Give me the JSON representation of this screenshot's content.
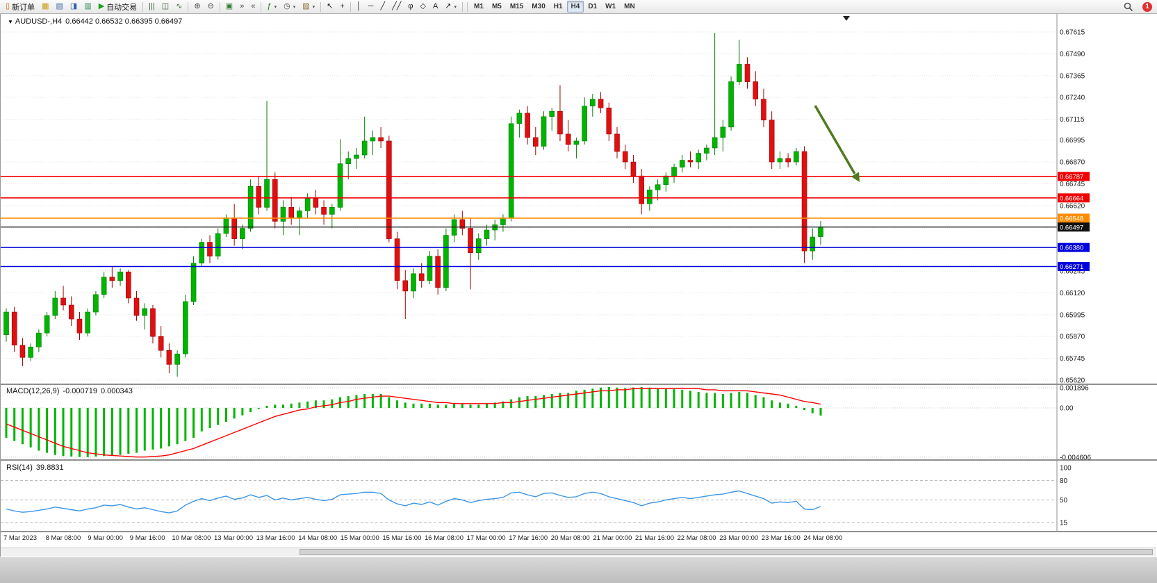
{
  "toolbar": {
    "items": [
      {
        "name": "new-order-button",
        "glyph": "▯",
        "glyph_color": "#d06010",
        "label": "新订单"
      },
      {
        "name": "market-watch-button",
        "glyph": "▦",
        "glyph_color": "#c8960a"
      },
      {
        "name": "data-window-button",
        "glyph": "▤",
        "glyph_color": "#3a62a8"
      },
      {
        "name": "navigator-button",
        "glyph": "◨",
        "glyph_color": "#3a62a8"
      },
      {
        "name": "terminal-button",
        "glyph": "▥",
        "glyph_color": "#2e8b57"
      },
      {
        "name": "autotrading-button",
        "glyph": "▶",
        "glyph_color": "#18a018",
        "label": "自动交易"
      },
      {
        "sep": true
      },
      {
        "name": "bar-chart-button",
        "glyph": "|||",
        "glyph_color": "#355e35"
      },
      {
        "name": "candlestick-chart-button",
        "glyph": "◫",
        "glyph_color": "#355e35"
      },
      {
        "name": "line-chart-button",
        "glyph": "∿",
        "glyph_color": "#355e35"
      },
      {
        "sep": true
      },
      {
        "name": "zoom-in-button",
        "glyph": "⊕",
        "glyph_color": "#444444"
      },
      {
        "name": "zoom-out-button",
        "glyph": "⊖",
        "glyph_color": "#444444"
      },
      {
        "sep": true
      },
      {
        "name": "tile-windows-button",
        "glyph": "▣",
        "glyph_color": "#3a7a3a"
      },
      {
        "name": "chart-shift-button",
        "glyph": "»",
        "glyph_color": "#444444"
      },
      {
        "name": "auto-scroll-button",
        "glyph": "«",
        "glyph_color": "#444444"
      },
      {
        "sep": true
      },
      {
        "name": "indicators-button",
        "glyph": "ƒ",
        "glyph_color": "#1f7a1f",
        "caret": true
      },
      {
        "name": "periods-button",
        "glyph": "◷",
        "glyph_color": "#444444",
        "caret": true
      },
      {
        "name": "templates-button",
        "glyph": "▧",
        "glyph_color": "#8a6a2a",
        "caret": true
      },
      {
        "sep": true
      },
      {
        "name": "cursor-button",
        "glyph": "↖",
        "glyph_color": "#222222"
      },
      {
        "name": "crosshair-button",
        "glyph": "+",
        "glyph_color": "#222222"
      },
      {
        "sep": true
      },
      {
        "name": "vertical-line-button",
        "glyph": "│",
        "glyph_color": "#222222"
      },
      {
        "name": "horizontal-line-button",
        "glyph": "─",
        "glyph_color": "#222222"
      },
      {
        "name": "trendline-button",
        "glyph": "╱",
        "glyph_color": "#222222"
      },
      {
        "name": "channel-button",
        "glyph": "╱╱",
        "glyph_color": "#222222"
      },
      {
        "name": "fibonacci-button",
        "glyph": "φ",
        "glyph_color": "#222222"
      },
      {
        "name": "shapes-button",
        "glyph": "◇",
        "glyph_color": "#222222"
      },
      {
        "name": "text-button",
        "glyph": "A",
        "glyph_color": "#222222"
      },
      {
        "name": "arrow-tools-button",
        "glyph": "↗",
        "glyph_color": "#222222",
        "caret": true
      },
      {
        "sep": true
      }
    ],
    "timeframes": [
      {
        "label": "M1"
      },
      {
        "label": "M5"
      },
      {
        "label": "M15"
      },
      {
        "label": "M30"
      },
      {
        "label": "H1"
      },
      {
        "label": "H4",
        "active": true
      },
      {
        "label": "D1"
      },
      {
        "label": "W1"
      },
      {
        "label": "MN"
      }
    ],
    "notification_count": "1"
  },
  "chart": {
    "title_symbol": "AUDUSD-,H4",
    "title_ohlc": "0.66442 0.66532 0.66395 0.66497"
  },
  "chart_data": {
    "type": "candlestick",
    "symbol": "AUDUSD",
    "period": "H4",
    "y_axis": {
      "min": 0.6562,
      "max": 0.67615,
      "step": 0.00125,
      "labels": [
        0.67615,
        0.6749,
        0.67365,
        0.6724,
        0.67115,
        0.66995,
        0.6687,
        0.66745,
        0.6662,
        0.66245,
        0.6612,
        0.65995,
        0.6587,
        0.65745,
        0.6562
      ],
      "extra_grid": [
        0.66495,
        0.6637
      ]
    },
    "x_axis_labels": [
      "7 Mar 2023",
      "8 Mar 08:00",
      "9 Mar 00:00",
      "9 Mar 16:00",
      "10 Mar 08:00",
      "13 Mar 00:00",
      "13 Mar 16:00",
      "14 Mar 08:00",
      "15 Mar 00:00",
      "15 Mar 16:00",
      "16 Mar 08:00",
      "17 Mar 00:00",
      "17 Mar 16:00",
      "20 Mar 08:00",
      "21 Mar 00:00",
      "21 Mar 16:00",
      "22 Mar 08:00",
      "23 Mar 00:00",
      "23 Mar 16:00",
      "24 Mar 08:00"
    ],
    "colors": {
      "up": "#00b400",
      "up_stroke": "#007a00",
      "down": "#e01010",
      "down_stroke": "#9c0000"
    },
    "h_lines": [
      {
        "price": 0.66787,
        "color": "#f00000"
      },
      {
        "price": 0.66664,
        "color": "#f00000"
      },
      {
        "price": 0.66548,
        "color": "#ff8c00"
      },
      {
        "price": 0.6638,
        "color": "#0000dc"
      },
      {
        "price": 0.66271,
        "color": "#0000dc"
      }
    ],
    "bid_line": {
      "price": 0.66497,
      "color": "#1a1a1a"
    },
    "candles": [
      [
        0.6588,
        0.6603,
        0.6584,
        0.6601
      ],
      [
        0.6601,
        0.6604,
        0.6578,
        0.6582
      ],
      [
        0.6582,
        0.6586,
        0.657,
        0.6575
      ],
      [
        0.6575,
        0.6583,
        0.6573,
        0.6581
      ],
      [
        0.6581,
        0.6591,
        0.6578,
        0.6589
      ],
      [
        0.6589,
        0.6601,
        0.6587,
        0.6599
      ],
      [
        0.6599,
        0.6613,
        0.6597,
        0.6609
      ],
      [
        0.6609,
        0.6616,
        0.6602,
        0.6605
      ],
      [
        0.6605,
        0.661,
        0.6593,
        0.6597
      ],
      [
        0.6597,
        0.6601,
        0.6585,
        0.6589
      ],
      [
        0.6589,
        0.6603,
        0.6587,
        0.6601
      ],
      [
        0.6601,
        0.6613,
        0.6599,
        0.6611
      ],
      [
        0.6611,
        0.6624,
        0.6609,
        0.6621
      ],
      [
        0.6621,
        0.6627,
        0.6615,
        0.6619
      ],
      [
        0.6619,
        0.6626,
        0.6616,
        0.6624
      ],
      [
        0.6624,
        0.6625,
        0.6606,
        0.6609
      ],
      [
        0.6609,
        0.6613,
        0.6596,
        0.6599
      ],
      [
        0.6599,
        0.6606,
        0.6591,
        0.6603
      ],
      [
        0.6603,
        0.6605,
        0.6583,
        0.6587
      ],
      [
        0.6587,
        0.6593,
        0.6575,
        0.6579
      ],
      [
        0.6579,
        0.6583,
        0.6566,
        0.6571
      ],
      [
        0.6571,
        0.6579,
        0.6564,
        0.6577
      ],
      [
        0.6577,
        0.6611,
        0.6575,
        0.6607
      ],
      [
        0.6607,
        0.6633,
        0.6605,
        0.6629
      ],
      [
        0.6629,
        0.6643,
        0.6627,
        0.6641
      ],
      [
        0.6641,
        0.6645,
        0.6629,
        0.6633
      ],
      [
        0.6633,
        0.6649,
        0.6631,
        0.6646
      ],
      [
        0.6646,
        0.6657,
        0.6644,
        0.6655
      ],
      [
        0.6655,
        0.6663,
        0.6639,
        0.6643
      ],
      [
        0.6643,
        0.6651,
        0.6637,
        0.6649
      ],
      [
        0.6649,
        0.6677,
        0.6647,
        0.6673
      ],
      [
        0.6673,
        0.6679,
        0.6657,
        0.6661
      ],
      [
        0.6661,
        0.6722,
        0.6659,
        0.6677
      ],
      [
        0.6677,
        0.6681,
        0.6649,
        0.6653
      ],
      [
        0.6653,
        0.6665,
        0.6645,
        0.6661
      ],
      [
        0.6661,
        0.6667,
        0.6651,
        0.6655
      ],
      [
        0.6655,
        0.6661,
        0.6645,
        0.6659
      ],
      [
        0.6659,
        0.6669,
        0.6655,
        0.6666
      ],
      [
        0.6666,
        0.6671,
        0.6657,
        0.6661
      ],
      [
        0.6661,
        0.6665,
        0.6651,
        0.6657
      ],
      [
        0.6657,
        0.6663,
        0.6649,
        0.6661
      ],
      [
        0.6661,
        0.67,
        0.6659,
        0.6686
      ],
      [
        0.6686,
        0.6693,
        0.6677,
        0.6689
      ],
      [
        0.6689,
        0.6695,
        0.6683,
        0.6691
      ],
      [
        0.6691,
        0.6713,
        0.6689,
        0.6699
      ],
      [
        0.6699,
        0.6705,
        0.6691,
        0.6701
      ],
      [
        0.6701,
        0.6707,
        0.6695,
        0.6699
      ],
      [
        0.6699,
        0.6702,
        0.6641,
        0.6643
      ],
      [
        0.6643,
        0.6647,
        0.6614,
        0.6619
      ],
      [
        0.6619,
        0.6625,
        0.6597,
        0.6613
      ],
      [
        0.6613,
        0.6626,
        0.6609,
        0.6623
      ],
      [
        0.6623,
        0.6629,
        0.6615,
        0.6619
      ],
      [
        0.6619,
        0.6636,
        0.6617,
        0.6633
      ],
      [
        0.6633,
        0.6637,
        0.6611,
        0.6615
      ],
      [
        0.6615,
        0.6649,
        0.6613,
        0.6645
      ],
      [
        0.6645,
        0.6657,
        0.6641,
        0.6654
      ],
      [
        0.6654,
        0.6659,
        0.6645,
        0.6649
      ],
      [
        0.6649,
        0.6655,
        0.6614,
        0.6635
      ],
      [
        0.6635,
        0.6646,
        0.6631,
        0.6643
      ],
      [
        0.6643,
        0.6651,
        0.6639,
        0.6648
      ],
      [
        0.6648,
        0.6654,
        0.6642,
        0.6651
      ],
      [
        0.6651,
        0.6657,
        0.6647,
        0.6655
      ],
      [
        0.6655,
        0.6713,
        0.6653,
        0.6709
      ],
      [
        0.6709,
        0.6717,
        0.6701,
        0.6715
      ],
      [
        0.6715,
        0.6719,
        0.6697,
        0.6701
      ],
      [
        0.6701,
        0.6707,
        0.6691,
        0.6696
      ],
      [
        0.6696,
        0.6716,
        0.6694,
        0.6713
      ],
      [
        0.6713,
        0.6718,
        0.6705,
        0.6716
      ],
      [
        0.6716,
        0.6731,
        0.6699,
        0.6703
      ],
      [
        0.6703,
        0.6711,
        0.6693,
        0.6697
      ],
      [
        0.6697,
        0.6701,
        0.6689,
        0.6699
      ],
      [
        0.6699,
        0.6724,
        0.6697,
        0.6719
      ],
      [
        0.6719,
        0.6726,
        0.6713,
        0.6723
      ],
      [
        0.6723,
        0.6727,
        0.6715,
        0.6718
      ],
      [
        0.6718,
        0.6721,
        0.6699,
        0.6703
      ],
      [
        0.6703,
        0.6707,
        0.6689,
        0.6693
      ],
      [
        0.6693,
        0.6697,
        0.6683,
        0.6687
      ],
      [
        0.6687,
        0.6691,
        0.6675,
        0.6679
      ],
      [
        0.6679,
        0.6683,
        0.6657,
        0.6663
      ],
      [
        0.6663,
        0.6673,
        0.6659,
        0.6671
      ],
      [
        0.6671,
        0.6677,
        0.6665,
        0.6674
      ],
      [
        0.6674,
        0.6681,
        0.667,
        0.6679
      ],
      [
        0.6679,
        0.6686,
        0.6675,
        0.6684
      ],
      [
        0.6684,
        0.6691,
        0.6681,
        0.6688
      ],
      [
        0.6688,
        0.6693,
        0.6684,
        0.6687
      ],
      [
        0.6687,
        0.6694,
        0.6683,
        0.6692
      ],
      [
        0.6692,
        0.6697,
        0.6688,
        0.6695
      ],
      [
        0.6695,
        0.6761,
        0.6691,
        0.6701
      ],
      [
        0.6701,
        0.6711,
        0.6693,
        0.6707
      ],
      [
        0.6707,
        0.6736,
        0.6705,
        0.6733
      ],
      [
        0.6733,
        0.6757,
        0.6731,
        0.6743
      ],
      [
        0.6743,
        0.6747,
        0.6729,
        0.6733
      ],
      [
        0.6733,
        0.6739,
        0.6719,
        0.6723
      ],
      [
        0.6723,
        0.6729,
        0.6707,
        0.6711
      ],
      [
        0.6711,
        0.6716,
        0.6683,
        0.6687
      ],
      [
        0.6687,
        0.6693,
        0.6683,
        0.6689
      ],
      [
        0.6689,
        0.6692,
        0.6684,
        0.6687
      ],
      [
        0.6687,
        0.6695,
        0.6685,
        0.6693
      ],
      [
        0.6693,
        0.6696,
        0.6629,
        0.6636
      ],
      [
        0.6636,
        0.6649,
        0.6631,
        0.6644
      ],
      [
        0.66442,
        0.66532,
        0.66395,
        0.66497
      ]
    ],
    "indicators": {
      "macd": {
        "label": "MACD(12,26,9)",
        "main_value": "-0.000719",
        "signal_value": "0.000343",
        "axis": [
          {
            "v": 0.001896,
            "label": "0.001896"
          },
          {
            "v": 0,
            "label": "0.00"
          },
          {
            "v": -0.004606,
            "label": "-0.004606"
          }
        ],
        "colors": {
          "histogram": "#00b400",
          "signal": "#ff0000"
        },
        "histogram": [
          -0.0028,
          -0.0031,
          -0.0034,
          -0.0037,
          -0.004,
          -0.0042,
          -0.0044,
          -0.0045,
          -0.00455,
          -0.0046,
          -0.0046,
          -0.00455,
          -0.0045,
          -0.00445,
          -0.0044,
          -0.0043,
          -0.0042,
          -0.004,
          -0.0039,
          -0.0038,
          -0.0036,
          -0.0034,
          -0.0031,
          -0.0028,
          -0.0022,
          -0.0019,
          -0.0016,
          -0.0013,
          -0.001,
          -0.0007,
          -0.0004,
          -0.0001,
          0.0002,
          0.0003,
          0.0003,
          0.0004,
          0.0005,
          0.0006,
          0.0007,
          0.0007,
          0.0008,
          0.001,
          0.0011,
          0.0012,
          0.0013,
          0.0013,
          0.0013,
          0.001,
          0.0007,
          0.0005,
          0.0004,
          0.0004,
          0.0004,
          0.0003,
          0.0003,
          0.0004,
          0.0004,
          0.0003,
          0.0003,
          0.0004,
          0.0005,
          0.0006,
          0.0008,
          0.001,
          0.0011,
          0.0011,
          0.0012,
          0.0013,
          0.0014,
          0.0014,
          0.0016,
          0.0017,
          0.0018,
          0.0019,
          0.00195,
          0.0019,
          0.00185,
          0.0019,
          0.00195,
          0.0019,
          0.00185,
          0.0018,
          0.00175,
          0.0017,
          0.0016,
          0.0015,
          0.0014,
          0.0014,
          0.0013,
          0.0014,
          0.0015,
          0.0014,
          0.0012,
          0.001,
          0.0007,
          0.0005,
          0.0004,
          0.0002,
          -0.0002,
          -0.0005,
          -0.000719
        ],
        "signal": [
          -0.0015,
          -0.0018,
          -0.0021,
          -0.0024,
          -0.0027,
          -0.003,
          -0.0033,
          -0.0036,
          -0.0038,
          -0.004,
          -0.0042,
          -0.0043,
          -0.0044,
          -0.00445,
          -0.0045,
          -0.00455,
          -0.0046,
          -0.0046,
          -0.00455,
          -0.0045,
          -0.0044,
          -0.0042,
          -0.004,
          -0.0038,
          -0.0035,
          -0.0032,
          -0.0029,
          -0.0026,
          -0.0023,
          -0.002,
          -0.0017,
          -0.0014,
          -0.0011,
          -0.0008,
          -0.0006,
          -0.0004,
          -0.0002,
          -0.0001,
          0.0001,
          0.0002,
          0.0003,
          0.0005,
          0.0006,
          0.0008,
          0.0009,
          0.001,
          0.0011,
          0.0011,
          0.001,
          0.0009,
          0.0008,
          0.0007,
          0.0006,
          0.0005,
          0.0005,
          0.0004,
          0.0004,
          0.0004,
          0.0004,
          0.0004,
          0.0004,
          0.0005,
          0.0005,
          0.0006,
          0.0007,
          0.0008,
          0.0009,
          0.001,
          0.0011,
          0.0012,
          0.0013,
          0.0014,
          0.0015,
          0.0016,
          0.0016,
          0.0017,
          0.0017,
          0.0018,
          0.0018,
          0.0018,
          0.0018,
          0.0018,
          0.0018,
          0.0018,
          0.0018,
          0.0018,
          0.0017,
          0.0017,
          0.0016,
          0.0016,
          0.0016,
          0.0016,
          0.0015,
          0.0014,
          0.0013,
          0.0012,
          0.001,
          0.0008,
          0.0006,
          0.0005,
          0.000343
        ]
      },
      "rsi": {
        "label": "RSI(14)",
        "value": "39.8831",
        "color": "#3c96e6",
        "levels": [
          {
            "v": 100,
            "label": "100"
          },
          {
            "v": 80,
            "label": "80"
          },
          {
            "v": 50,
            "label": "50"
          },
          {
            "v": 15,
            "label": "15"
          }
        ],
        "values": [
          36,
          33,
          31,
          32,
          34,
          36,
          39,
          37,
          35,
          33,
          36,
          38,
          42,
          41,
          43,
          39,
          36,
          38,
          35,
          32,
          30,
          33,
          42,
          48,
          52,
          49,
          53,
          56,
          51,
          53,
          58,
          54,
          57,
          50,
          53,
          50,
          52,
          54,
          51,
          49,
          51,
          58,
          59,
          60,
          62,
          62,
          60,
          50,
          44,
          41,
          45,
          43,
          47,
          42,
          48,
          52,
          50,
          46,
          49,
          51,
          52,
          54,
          61,
          62,
          58,
          55,
          60,
          61,
          57,
          54,
          55,
          60,
          62,
          60,
          55,
          52,
          49,
          46,
          41,
          45,
          47,
          50,
          52,
          54,
          52,
          54,
          56,
          58,
          59,
          62,
          64,
          60,
          56,
          52,
          45,
          47,
          46,
          48,
          36,
          35,
          39.8831
        ]
      }
    },
    "annotation": {
      "type": "arrow-down-right",
      "color": "#4f7a1e"
    }
  }
}
